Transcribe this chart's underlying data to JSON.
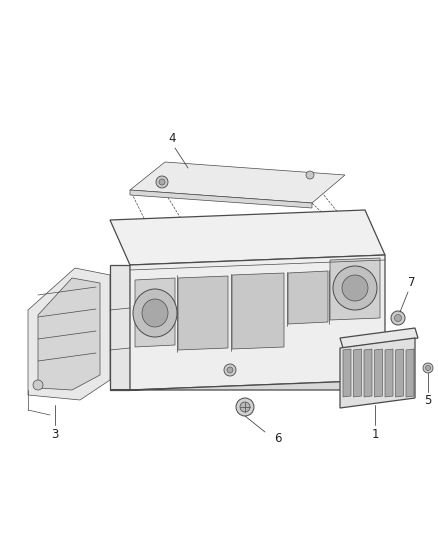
{
  "bg_color": "#ffffff",
  "line_color": "#4a4a4a",
  "fill_light": "#f2f2f2",
  "fill_mid": "#e0e0e0",
  "fill_dark": "#cccccc",
  "fill_slot": "#b8b8b8",
  "label_color": "#222222",
  "fig_width": 4.38,
  "fig_height": 5.33,
  "dpi": 100,
  "lw_main": 0.9,
  "lw_thin": 0.5,
  "lw_leader": 0.6
}
